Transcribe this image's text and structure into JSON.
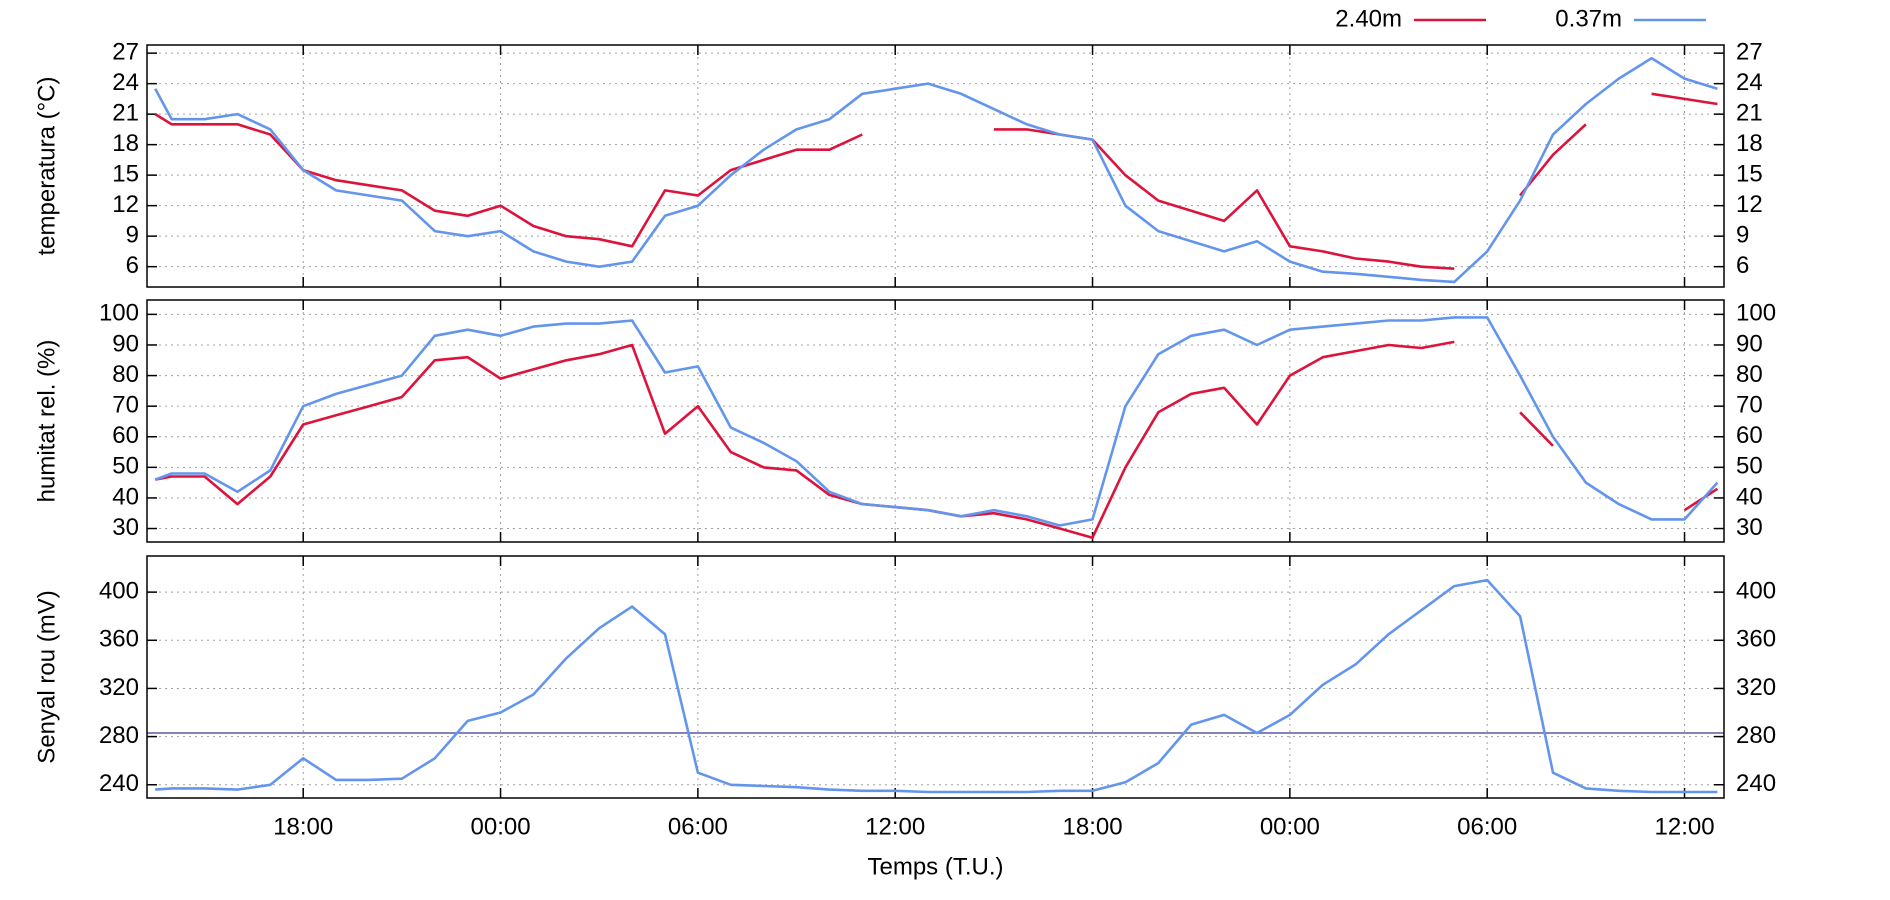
{
  "chart_data": [
    {
      "type": "line",
      "ylabel": "temperatura (°C)",
      "x": [
        -10.5,
        -10,
        -9,
        -8,
        -7,
        -6,
        -5,
        -4,
        -3,
        -2,
        -1,
        0,
        1,
        2,
        3,
        4,
        5,
        6,
        7,
        8,
        9,
        10,
        11,
        12,
        13,
        14,
        15,
        16,
        17,
        18,
        19,
        20,
        21,
        22,
        23,
        24,
        25,
        26,
        27,
        28,
        29,
        30,
        31,
        32,
        33,
        34,
        35,
        36,
        37
      ],
      "xlim": [
        -10.75,
        37.2
      ],
      "ylim": [
        4,
        27.8
      ],
      "yticks": [
        6,
        9,
        12,
        15,
        18,
        21,
        24,
        27
      ],
      "grid": true,
      "legend": "top-right",
      "series": [
        {
          "name": "2.40m",
          "color": "#dc143c",
          "values": [
            21,
            20,
            20,
            20,
            19,
            15.5,
            14.5,
            14,
            13.5,
            11.5,
            11,
            12,
            10,
            9,
            8.7,
            8,
            13.5,
            13,
            15.5,
            16.5,
            17.5,
            17.5,
            19,
            null,
            null,
            null,
            19.5,
            19.5,
            19,
            18.5,
            15,
            12.5,
            11.5,
            10.5,
            13.5,
            8,
            7.5,
            6.8,
            6.5,
            6,
            5.8,
            null,
            13,
            17,
            20,
            null,
            23,
            22.5,
            22
          ]
        },
        {
          "name": "0.37m",
          "color": "#6495ed",
          "values": [
            23.5,
            20.5,
            20.5,
            21,
            19.5,
            15.5,
            13.5,
            13,
            12.5,
            9.5,
            9,
            9.5,
            7.5,
            6.5,
            6,
            6.5,
            11,
            12,
            15,
            17.5,
            19.5,
            20.5,
            23,
            23.5,
            24,
            23,
            21.5,
            20,
            19,
            18.5,
            12,
            9.5,
            8.5,
            7.5,
            8.5,
            6.5,
            5.5,
            5.3,
            5,
            4.7,
            4.5,
            7.5,
            12.5,
            19,
            22,
            24.5,
            26.5,
            24.5,
            23.5
          ]
        }
      ]
    },
    {
      "type": "line",
      "ylabel": "humitat rel. (%)",
      "x": [
        -10.5,
        -10,
        -9,
        -8,
        -7,
        -6,
        -5,
        -4,
        -3,
        -2,
        -1,
        0,
        1,
        2,
        3,
        4,
        5,
        6,
        7,
        8,
        9,
        10,
        11,
        12,
        13,
        14,
        15,
        16,
        17,
        18,
        19,
        20,
        21,
        22,
        23,
        24,
        25,
        26,
        27,
        28,
        29,
        30,
        31,
        32,
        33,
        34,
        35,
        36,
        37
      ],
      "xlim": [
        -10.75,
        37.2
      ],
      "ylim": [
        25.6,
        104.7
      ],
      "yticks": [
        30,
        40,
        50,
        60,
        70,
        80,
        90,
        100
      ],
      "grid": true,
      "series": [
        {
          "color": "#dc143c",
          "values": [
            46,
            47,
            47,
            38,
            47,
            64,
            67,
            70,
            73,
            85,
            86,
            79,
            82,
            85,
            87,
            90,
            61,
            70,
            55,
            50,
            49,
            41,
            38,
            37,
            36,
            34,
            35,
            33,
            30,
            27,
            50,
            68,
            74,
            76,
            64,
            80,
            86,
            88,
            90,
            89,
            91,
            null,
            68,
            57,
            null,
            null,
            null,
            36,
            43
          ]
        },
        {
          "color": "#6495ed",
          "values": [
            46,
            48,
            48,
            42,
            49,
            70,
            74,
            77,
            80,
            93,
            95,
            93,
            96,
            97,
            97,
            98,
            81,
            83,
            63,
            58,
            52,
            42,
            38,
            37,
            36,
            34,
            36,
            34,
            31,
            33,
            70,
            87,
            93,
            95,
            90,
            95,
            96,
            97,
            98,
            98,
            99,
            99,
            80,
            60,
            45,
            38,
            33,
            33,
            45
          ]
        }
      ]
    },
    {
      "type": "line",
      "ylabel": "Senyal rou (mV)",
      "xlabel": "Temps (T.U.)",
      "x": [
        -10.5,
        -10,
        -9,
        -8,
        -7,
        -6,
        -5,
        -4,
        -3,
        -2,
        -1,
        0,
        1,
        2,
        3,
        4,
        5,
        6,
        7,
        8,
        9,
        10,
        11,
        12,
        13,
        14,
        15,
        16,
        17,
        18,
        19,
        20,
        21,
        22,
        23,
        24,
        25,
        26,
        27,
        28,
        29,
        30,
        31,
        32,
        33,
        34,
        35,
        36,
        37
      ],
      "xlim": [
        -10.75,
        37.2
      ],
      "ylim": [
        229,
        430
      ],
      "yticks": [
        240,
        280,
        320,
        360,
        400
      ],
      "grid": true,
      "xticks": [
        {
          "value": -6,
          "label": "18:00"
        },
        {
          "value": 0,
          "label": "00:00"
        },
        {
          "value": 6,
          "label": "06:00"
        },
        {
          "value": 12,
          "label": "12:00"
        },
        {
          "value": 18,
          "label": "18:00"
        },
        {
          "value": 24,
          "label": "00:00"
        },
        {
          "value": 30,
          "label": "06:00"
        },
        {
          "value": 36,
          "label": "12:00"
        }
      ],
      "hline": 283,
      "hline_color": "#5a5aa0",
      "series": [
        {
          "color": "#6495ed",
          "values": [
            236,
            237,
            237,
            236,
            240,
            262,
            244,
            244,
            245,
            262,
            293,
            300,
            315,
            345,
            370,
            388,
            365,
            250,
            240,
            239,
            238,
            236,
            235,
            235,
            234,
            234,
            234,
            234,
            235,
            235,
            242,
            258,
            290,
            298,
            283,
            298,
            323,
            340,
            365,
            385,
            405,
            410,
            380,
            250,
            237,
            235,
            234,
            234,
            234
          ]
        }
      ]
    }
  ]
}
